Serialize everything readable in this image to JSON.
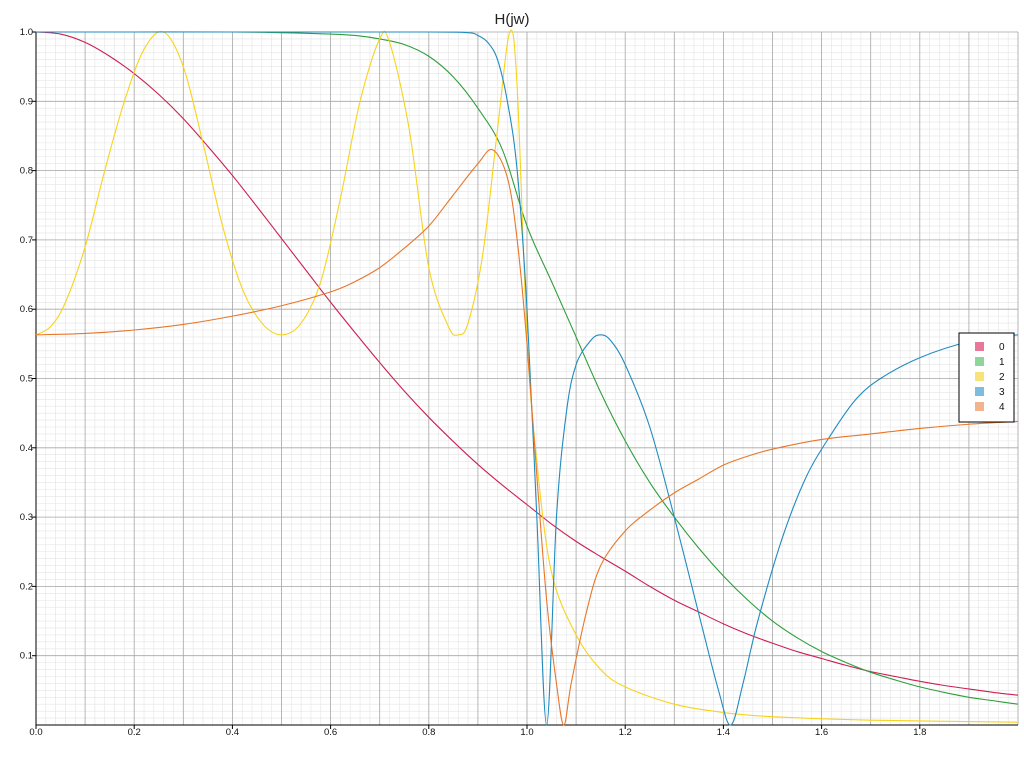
{
  "chart_data": {
    "type": "line",
    "title": "H(jw)",
    "xlabel": "",
    "ylabel": "",
    "xlim": [
      0,
      2.0
    ],
    "ylim": [
      0,
      1.0
    ],
    "grid": true,
    "legend_position": "right",
    "x_ticks": [
      "0.0",
      "0.2",
      "0.4",
      "0.6",
      "0.8",
      "1.0",
      "1.2",
      "1.4",
      "1.6",
      "1.8"
    ],
    "y_ticks": [
      "0.1",
      "0.2",
      "0.3",
      "0.4",
      "0.5",
      "0.6",
      "0.7",
      "0.8",
      "0.9",
      "1.0"
    ],
    "x_tick_values": [
      0,
      0.2,
      0.4,
      0.6,
      0.8,
      1.0,
      1.2,
      1.4,
      1.6,
      1.8
    ],
    "y_tick_values": [
      0.1,
      0.2,
      0.3,
      0.4,
      0.5,
      0.6,
      0.7,
      0.8,
      0.9,
      1.0
    ],
    "series": [
      {
        "name": "0",
        "color": "#cc1f52",
        "legend_color": "#e8779a",
        "points": [
          [
            0,
            1.0
          ],
          [
            0.05,
            0.997
          ],
          [
            0.1,
            0.985
          ],
          [
            0.15,
            0.965
          ],
          [
            0.2,
            0.94
          ],
          [
            0.25,
            0.91
          ],
          [
            0.3,
            0.875
          ],
          [
            0.35,
            0.835
          ],
          [
            0.4,
            0.793
          ],
          [
            0.45,
            0.748
          ],
          [
            0.5,
            0.702
          ],
          [
            0.55,
            0.656
          ],
          [
            0.6,
            0.61
          ],
          [
            0.65,
            0.566
          ],
          [
            0.7,
            0.523
          ],
          [
            0.75,
            0.482
          ],
          [
            0.8,
            0.444
          ],
          [
            0.85,
            0.409
          ],
          [
            0.9,
            0.376
          ],
          [
            0.95,
            0.346
          ],
          [
            1.0,
            0.318
          ],
          [
            1.05,
            0.29
          ],
          [
            1.1,
            0.265
          ],
          [
            1.15,
            0.243
          ],
          [
            1.2,
            0.222
          ],
          [
            1.25,
            0.2
          ],
          [
            1.3,
            0.18
          ],
          [
            1.35,
            0.163
          ],
          [
            1.4,
            0.146
          ],
          [
            1.45,
            0.131
          ],
          [
            1.5,
            0.118
          ],
          [
            1.55,
            0.106
          ],
          [
            1.6,
            0.096
          ],
          [
            1.65,
            0.086
          ],
          [
            1.7,
            0.077
          ],
          [
            1.75,
            0.07
          ],
          [
            1.8,
            0.063
          ],
          [
            1.85,
            0.057
          ],
          [
            1.9,
            0.052
          ],
          [
            1.95,
            0.047
          ],
          [
            2.0,
            0.043
          ]
        ]
      },
      {
        "name": "1",
        "color": "#2e9e3a",
        "legend_color": "#8fd69a",
        "points": [
          [
            0,
            1.0
          ],
          [
            0.2,
            1.0
          ],
          [
            0.4,
            1.0
          ],
          [
            0.5,
            0.999
          ],
          [
            0.6,
            0.997
          ],
          [
            0.65,
            0.995
          ],
          [
            0.7,
            0.99
          ],
          [
            0.75,
            0.982
          ],
          [
            0.8,
            0.965
          ],
          [
            0.85,
            0.935
          ],
          [
            0.9,
            0.89
          ],
          [
            0.95,
            0.83
          ],
          [
            1.0,
            0.72
          ],
          [
            1.05,
            0.64
          ],
          [
            1.1,
            0.56
          ],
          [
            1.15,
            0.48
          ],
          [
            1.2,
            0.41
          ],
          [
            1.25,
            0.35
          ],
          [
            1.3,
            0.3
          ],
          [
            1.35,
            0.255
          ],
          [
            1.4,
            0.215
          ],
          [
            1.45,
            0.18
          ],
          [
            1.5,
            0.15
          ],
          [
            1.55,
            0.126
          ],
          [
            1.6,
            0.106
          ],
          [
            1.65,
            0.09
          ],
          [
            1.7,
            0.076
          ],
          [
            1.75,
            0.065
          ],
          [
            1.8,
            0.055
          ],
          [
            1.85,
            0.047
          ],
          [
            1.9,
            0.04
          ],
          [
            1.95,
            0.035
          ],
          [
            2.0,
            0.03
          ]
        ]
      },
      {
        "name": "2",
        "color": "#f7d31c",
        "legend_color": "#f7e37a",
        "points": [
          [
            0,
            0.563
          ],
          [
            0.03,
            0.575
          ],
          [
            0.06,
            0.61
          ],
          [
            0.1,
            0.69
          ],
          [
            0.14,
            0.8
          ],
          [
            0.18,
            0.9
          ],
          [
            0.22,
            0.975
          ],
          [
            0.26,
            1.0
          ],
          [
            0.3,
            0.95
          ],
          [
            0.34,
            0.84
          ],
          [
            0.38,
            0.72
          ],
          [
            0.42,
            0.63
          ],
          [
            0.46,
            0.58
          ],
          [
            0.5,
            0.563
          ],
          [
            0.54,
            0.58
          ],
          [
            0.58,
            0.64
          ],
          [
            0.62,
            0.76
          ],
          [
            0.66,
            0.9
          ],
          [
            0.7,
            0.99
          ],
          [
            0.72,
            0.985
          ],
          [
            0.76,
            0.86
          ],
          [
            0.8,
            0.66
          ],
          [
            0.84,
            0.575
          ],
          [
            0.86,
            0.563
          ],
          [
            0.88,
            0.58
          ],
          [
            0.91,
            0.68
          ],
          [
            0.94,
            0.86
          ],
          [
            0.965,
            1.0
          ],
          [
            0.98,
            0.92
          ],
          [
            1.0,
            0.56
          ],
          [
            1.02,
            0.38
          ],
          [
            1.05,
            0.22
          ],
          [
            1.1,
            0.13
          ],
          [
            1.15,
            0.08
          ],
          [
            1.2,
            0.055
          ],
          [
            1.3,
            0.03
          ],
          [
            1.4,
            0.018
          ],
          [
            1.5,
            0.012
          ],
          [
            1.7,
            0.007
          ],
          [
            2.0,
            0.004
          ]
        ]
      },
      {
        "name": "3",
        "color": "#1f8bbf",
        "legend_color": "#7fbde0",
        "points": [
          [
            0,
            1.0
          ],
          [
            0.5,
            1.0
          ],
          [
            0.8,
            1.0
          ],
          [
            0.88,
            0.999
          ],
          [
            0.9,
            0.995
          ],
          [
            0.92,
            0.985
          ],
          [
            0.94,
            0.96
          ],
          [
            0.96,
            0.9
          ],
          [
            0.98,
            0.8
          ],
          [
            1.0,
            0.6
          ],
          [
            1.02,
            0.3
          ],
          [
            1.04,
            0.0
          ],
          [
            1.06,
            0.3
          ],
          [
            1.08,
            0.45
          ],
          [
            1.1,
            0.52
          ],
          [
            1.13,
            0.555
          ],
          [
            1.15,
            0.563
          ],
          [
            1.17,
            0.555
          ],
          [
            1.2,
            0.52
          ],
          [
            1.25,
            0.43
          ],
          [
            1.3,
            0.3
          ],
          [
            1.35,
            0.16
          ],
          [
            1.39,
            0.05
          ],
          [
            1.415,
            0.0
          ],
          [
            1.44,
            0.06
          ],
          [
            1.47,
            0.15
          ],
          [
            1.52,
            0.27
          ],
          [
            1.57,
            0.36
          ],
          [
            1.62,
            0.42
          ],
          [
            1.67,
            0.47
          ],
          [
            1.72,
            0.5
          ],
          [
            1.8,
            0.53
          ],
          [
            1.9,
            0.553
          ],
          [
            2.0,
            0.563
          ]
        ]
      },
      {
        "name": "4",
        "color": "#e8762a",
        "legend_color": "#f2b48c",
        "points": [
          [
            0,
            0.563
          ],
          [
            0.1,
            0.565
          ],
          [
            0.2,
            0.57
          ],
          [
            0.3,
            0.578
          ],
          [
            0.4,
            0.59
          ],
          [
            0.5,
            0.605
          ],
          [
            0.6,
            0.625
          ],
          [
            0.65,
            0.64
          ],
          [
            0.7,
            0.66
          ],
          [
            0.75,
            0.688
          ],
          [
            0.8,
            0.72
          ],
          [
            0.85,
            0.765
          ],
          [
            0.9,
            0.81
          ],
          [
            0.93,
            0.83
          ],
          [
            0.96,
            0.79
          ],
          [
            0.98,
            0.7
          ],
          [
            1.0,
            0.55
          ],
          [
            1.02,
            0.36
          ],
          [
            1.04,
            0.18
          ],
          [
            1.06,
            0.06
          ],
          [
            1.075,
            0.0
          ],
          [
            1.09,
            0.06
          ],
          [
            1.12,
            0.16
          ],
          [
            1.15,
            0.23
          ],
          [
            1.2,
            0.28
          ],
          [
            1.25,
            0.31
          ],
          [
            1.3,
            0.335
          ],
          [
            1.35,
            0.355
          ],
          [
            1.4,
            0.375
          ],
          [
            1.45,
            0.388
          ],
          [
            1.5,
            0.398
          ],
          [
            1.6,
            0.412
          ],
          [
            1.7,
            0.42
          ],
          [
            1.8,
            0.428
          ],
          [
            1.9,
            0.434
          ],
          [
            2.0,
            0.438
          ]
        ]
      }
    ]
  }
}
